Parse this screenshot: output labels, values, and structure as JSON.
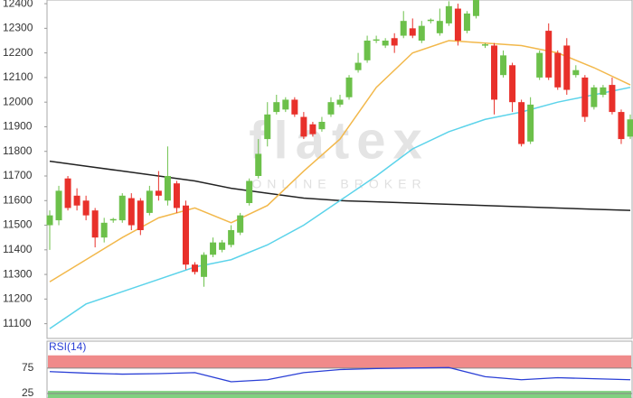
{
  "chart_data": [
    {
      "type": "candlestick",
      "watermark": "flatex",
      "watermark_sub": "ONLINE BROKER",
      "categories": [
        null,
        null,
        null,
        null,
        null,
        null,
        null,
        null,
        null,
        null,
        null,
        null,
        null,
        null,
        null,
        null,
        null,
        null,
        null,
        null,
        null,
        null,
        null,
        null,
        null,
        null,
        null,
        null,
        null,
        null,
        null,
        null,
        null,
        null,
        null,
        null,
        null,
        null,
        null,
        null,
        null,
        null,
        null,
        null,
        null,
        null,
        null,
        null,
        null,
        null,
        null,
        null,
        null,
        null,
        null,
        null,
        null,
        null,
        null,
        null,
        null,
        null,
        null,
        null,
        null
      ],
      "open": [
        11500,
        11520,
        11690,
        11620,
        11600,
        11560,
        11450,
        11520,
        11520,
        11610,
        11600,
        11550,
        11640,
        11600,
        11670,
        11580,
        11340,
        11290,
        11380,
        11400,
        11420,
        11470,
        11590,
        11700,
        11850,
        11960,
        11970,
        12010,
        11940,
        11910,
        11890,
        11950,
        11990,
        12020,
        12130,
        12170,
        12250,
        12230,
        12260,
        12270,
        12300,
        12250,
        12330,
        12280,
        12320,
        12380,
        12290,
        12350,
        12230,
        12230,
        12110,
        12150,
        12000,
        11840,
        12100,
        12290,
        12200,
        12230,
        12110,
        12100,
        11980,
        12030,
        12070,
        11960,
        11860
      ],
      "high": [
        11560,
        11660,
        11700,
        11650,
        11620,
        11570,
        11530,
        11530,
        11630,
        11630,
        11610,
        11660,
        11720,
        11820,
        11680,
        11600,
        11350,
        11390,
        11450,
        11440,
        11500,
        11550,
        11690,
        11850,
        12000,
        12030,
        12020,
        12020,
        11960,
        11920,
        11940,
        12020,
        12030,
        12110,
        12200,
        12270,
        12270,
        12260,
        12280,
        12370,
        12340,
        12330,
        12340,
        12380,
        12410,
        12400,
        12370,
        12450,
        12240,
        12240,
        12210,
        12160,
        12010,
        12020,
        12210,
        12320,
        12210,
        12260,
        12150,
        12110,
        12070,
        12070,
        12100,
        11970,
        11950
      ],
      "low": [
        11400,
        11500,
        11560,
        11560,
        11520,
        11410,
        11430,
        11510,
        11510,
        11480,
        11460,
        11540,
        11600,
        11580,
        11550,
        11320,
        11300,
        11250,
        11370,
        11390,
        11410,
        11460,
        11580,
        11690,
        11820,
        11950,
        11960,
        11940,
        11850,
        11860,
        11880,
        11940,
        11980,
        12010,
        12120,
        12160,
        12240,
        12220,
        12200,
        12260,
        12260,
        12240,
        12320,
        12270,
        12310,
        12230,
        12280,
        12340,
        12220,
        11950,
        12100,
        11960,
        11820,
        11830,
        12090,
        12090,
        12050,
        12030,
        12100,
        11920,
        11970,
        12020,
        11950,
        11830,
        11850
      ],
      "close": [
        11540,
        11640,
        11570,
        11580,
        11540,
        11450,
        11510,
        11525,
        11620,
        11500,
        11480,
        11640,
        11620,
        11700,
        11570,
        11340,
        11310,
        11380,
        11430,
        11430,
        11480,
        11540,
        11680,
        11790,
        11950,
        12000,
        12010,
        11950,
        11860,
        11870,
        11920,
        12000,
        12010,
        12100,
        12160,
        12250,
        12255,
        12250,
        12230,
        12330,
        12270,
        12310,
        12335,
        12330,
        12390,
        12250,
        12360,
        12430,
        12235,
        12010,
        12190,
        12000,
        11830,
        11990,
        12200,
        12100,
        12060,
        12050,
        12130,
        11940,
        12060,
        12060,
        11960,
        11850,
        11930
      ],
      "up_color": "#6cc04a",
      "down_color": "#e8302a",
      "lines": [
        {
          "color": "#222222",
          "x": [
            0,
            4,
            8,
            12,
            16,
            20,
            24,
            28,
            32,
            36,
            40,
            44,
            48,
            52,
            56,
            60,
            64
          ],
          "values": [
            11760,
            11740,
            11720,
            11700,
            11680,
            11650,
            11630,
            11610,
            11600,
            11595,
            11590,
            11585,
            11580,
            11575,
            11570,
            11565,
            11560
          ]
        },
        {
          "color": "#f2b84b",
          "x": [
            0,
            4,
            8,
            12,
            16,
            20,
            24,
            28,
            32,
            36,
            40,
            44,
            48,
            52,
            56,
            60,
            64
          ],
          "values": [
            11270,
            11360,
            11450,
            11530,
            11570,
            11510,
            11580,
            11720,
            11850,
            12060,
            12200,
            12250,
            12240,
            12230,
            12200,
            12140,
            12070
          ]
        },
        {
          "color": "#5bd3ea",
          "x": [
            0,
            4,
            8,
            12,
            16,
            20,
            24,
            28,
            32,
            36,
            40,
            44,
            48,
            52,
            56,
            60,
            64
          ],
          "values": [
            11080,
            11180,
            11230,
            11280,
            11330,
            11360,
            11420,
            11500,
            11600,
            11700,
            11810,
            11880,
            11930,
            11960,
            12000,
            12030,
            12060
          ]
        }
      ],
      "ylim": [
        11040,
        12415
      ],
      "yticks": [
        11100,
        11200,
        11300,
        11400,
        11500,
        11600,
        11700,
        11800,
        11900,
        12000,
        12100,
        12200,
        12300,
        12400
      ]
    },
    {
      "type": "line",
      "title": "RSI(14)",
      "x": [
        0,
        4,
        8,
        12,
        16,
        20,
        24,
        28,
        32,
        36,
        40,
        44,
        48,
        52,
        56,
        60,
        64
      ],
      "values": [
        68,
        65,
        63,
        64,
        66,
        48,
        52,
        66,
        72,
        74,
        75,
        76,
        58,
        52,
        56,
        54,
        52
      ],
      "color": "#2a3fd6",
      "bands": [
        {
          "from": 75,
          "to": 100,
          "color": "#f08a8a"
        },
        {
          "from": 16,
          "to": 30,
          "color": "#7fd07f"
        }
      ],
      "ylim": [
        16,
        128
      ],
      "yticks": [
        75,
        25
      ]
    }
  ]
}
